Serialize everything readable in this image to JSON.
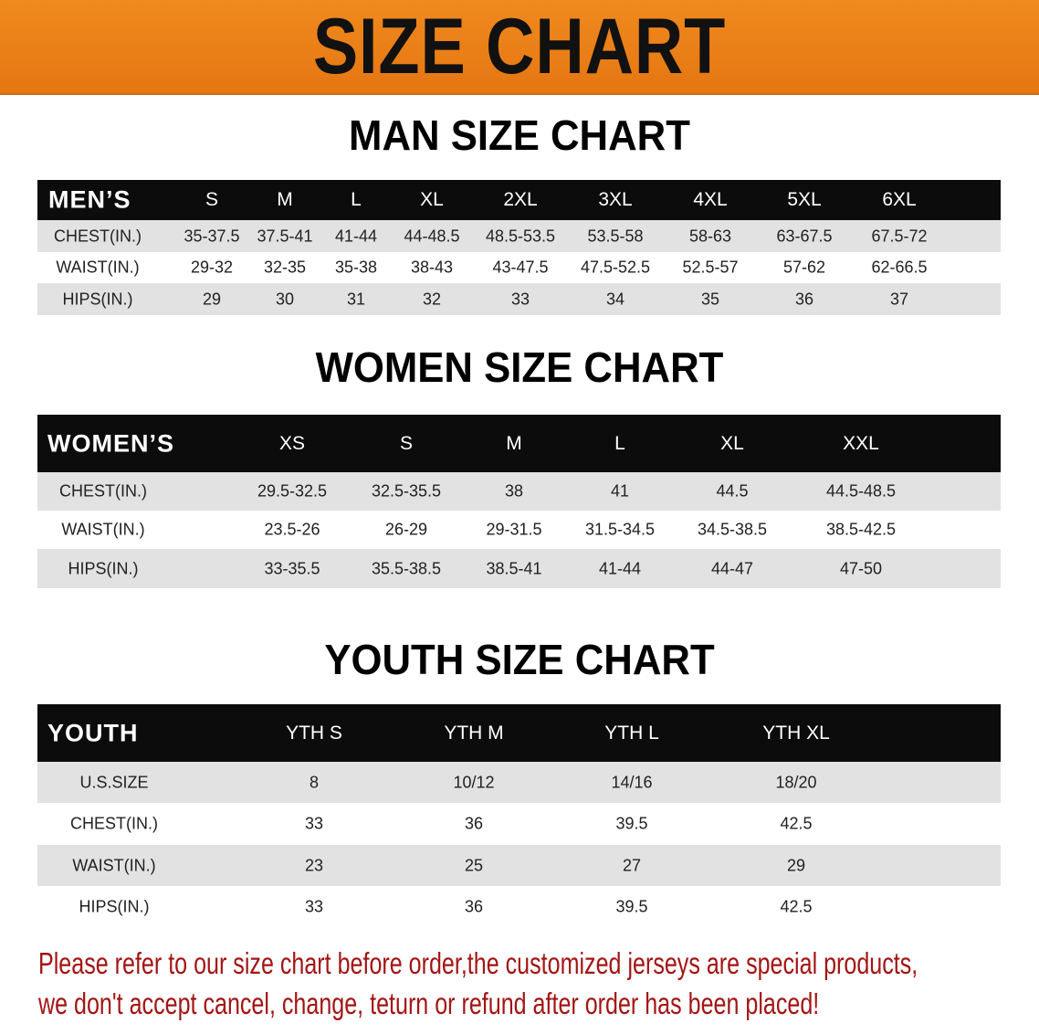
{
  "banner_title": "SIZE CHART",
  "men": {
    "title": "MAN SIZE CHART",
    "header": [
      "MEN’S",
      "S",
      "M",
      "L",
      "XL",
      "2XL",
      "3XL",
      "4XL",
      "5XL",
      "6XL"
    ],
    "rows": [
      [
        "CHEST(IN.)",
        "35-37.5",
        "37.5-41",
        "41-44",
        "44-48.5",
        "48.5-53.5",
        "53.5-58",
        "58-63",
        "63-67.5",
        "67.5-72"
      ],
      [
        "WAIST(IN.)",
        "29-32",
        "32-35",
        "35-38",
        "38-43",
        "43-47.5",
        "47.5-52.5",
        "52.5-57",
        "57-62",
        "62-66.5"
      ],
      [
        "HIPS(IN.)",
        "29",
        "30",
        "31",
        "32",
        "33",
        "34",
        "35",
        "36",
        "37"
      ]
    ]
  },
  "women": {
    "title": "WOMEN SIZE CHART",
    "header": [
      "WOMEN’S",
      "XS",
      "S",
      "M",
      "L",
      "XL",
      "XXL"
    ],
    "rows": [
      [
        "CHEST(IN.)",
        "29.5-32.5",
        "32.5-35.5",
        "38",
        "41",
        "44.5",
        "44.5-48.5"
      ],
      [
        "WAIST(IN.)",
        "23.5-26",
        "26-29",
        "29-31.5",
        "31.5-34.5",
        "34.5-38.5",
        "38.5-42.5"
      ],
      [
        "HIPS(IN.)",
        "33-35.5",
        "35.5-38.5",
        "38.5-41",
        "41-44",
        "44-47",
        "47-50"
      ]
    ]
  },
  "youth": {
    "title": "YOUTH SIZE CHART",
    "header": [
      "YOUTH",
      "YTH S",
      "YTH M",
      "YTH L",
      "YTH XL"
    ],
    "rows": [
      [
        "U.S.SIZE",
        "8",
        "10/12",
        "14/16",
        "18/20"
      ],
      [
        "CHEST(IN.)",
        "33",
        "36",
        "39.5",
        "42.5"
      ],
      [
        "WAIST(IN.)",
        "23",
        "25",
        "27",
        "29"
      ],
      [
        "HIPS(IN.)",
        "33",
        "36",
        "39.5",
        "42.5"
      ]
    ]
  },
  "note": {
    "line1": "Please refer to our size chart before order,the customized jerseys are special products,",
    "line2": "we don't accept cancel, change, teturn or refund after order has been placed!"
  },
  "colors": {
    "banner": "#ee8519",
    "header_row": "#0c0c0c",
    "stripe": "#e2e2e2",
    "note": "#a31515"
  }
}
